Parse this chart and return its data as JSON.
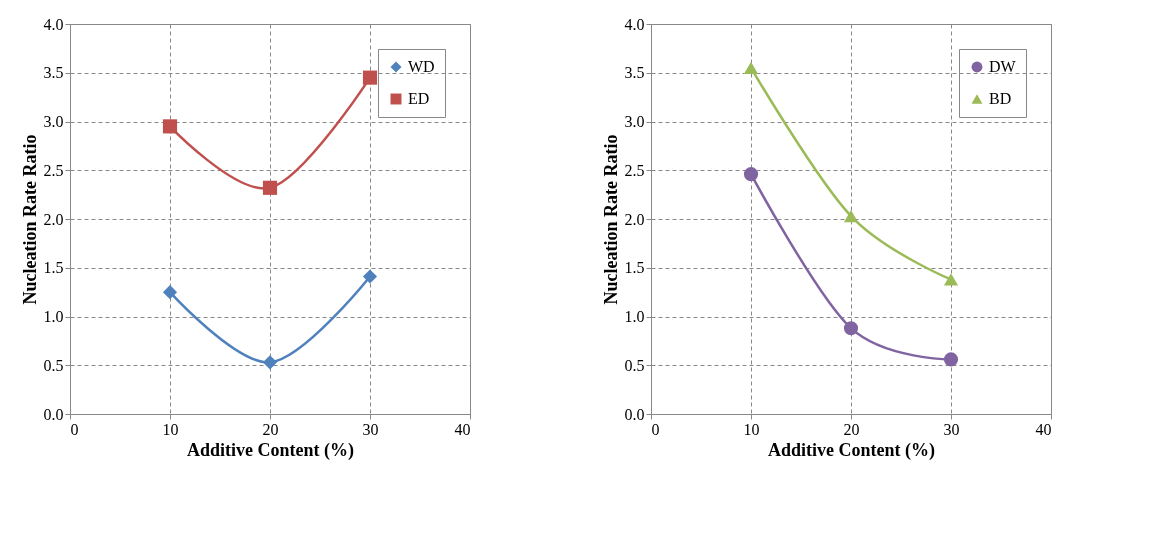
{
  "chart_data": [
    {
      "type": "line",
      "xlabel": "Additive Content (%)",
      "ylabel": "Nucleation Rate Ratio",
      "x": [
        10,
        20,
        30
      ],
      "xlim": [
        0,
        40
      ],
      "xticks": [
        0,
        10,
        20,
        30,
        40
      ],
      "ylim": [
        0,
        4
      ],
      "yticks": [
        {
          "value": 0,
          "label": "0.0"
        },
        {
          "value": 0.5,
          "label": "0.5"
        },
        {
          "value": 1,
          "label": "1.0"
        },
        {
          "value": 1.5,
          "label": "1.5"
        },
        {
          "value": 2,
          "label": "2.0"
        },
        {
          "value": 2.5,
          "label": "2.5"
        },
        {
          "value": 3,
          "label": "3.0"
        },
        {
          "value": 3.5,
          "label": "3.5"
        },
        {
          "value": 4,
          "label": "4.0"
        }
      ],
      "grid": true,
      "legend": "top right",
      "line_style": "solid",
      "series": [
        {
          "name": "WD",
          "color": "#4f81bd",
          "marker": "diamond",
          "values": [
            1.25,
            0.53,
            1.41
          ]
        },
        {
          "name": "ED",
          "color": "#c0504d",
          "marker": "square",
          "values": [
            2.95,
            2.32,
            3.45
          ]
        }
      ]
    },
    {
      "type": "line",
      "xlabel": "Additive Content (%)",
      "ylabel": "Nucleation Rate Ratio",
      "x": [
        10,
        20,
        30
      ],
      "xlim": [
        0,
        40
      ],
      "xticks": [
        0,
        10,
        20,
        30,
        40
      ],
      "ylim": [
        0,
        4
      ],
      "yticks": [
        {
          "value": 0,
          "label": "0.0"
        },
        {
          "value": 0.5,
          "label": "0.5"
        },
        {
          "value": 1,
          "label": "1.0"
        },
        {
          "value": 1.5,
          "label": "1.5"
        },
        {
          "value": 2,
          "label": "2.0"
        },
        {
          "value": 2.5,
          "label": "2.5"
        },
        {
          "value": 3,
          "label": "3.0"
        },
        {
          "value": 3.5,
          "label": "3.5"
        },
        {
          "value": 4,
          "label": "4.0"
        }
      ],
      "grid": true,
      "legend": "top right",
      "line_style": "solid",
      "series": [
        {
          "name": "DW",
          "color": "#8064a2",
          "marker": "circle",
          "values": [
            2.46,
            0.88,
            0.56
          ]
        },
        {
          "name": "BD",
          "color": "#9bbb59",
          "marker": "triangle",
          "values": [
            3.55,
            2.03,
            1.38
          ]
        }
      ]
    }
  ]
}
